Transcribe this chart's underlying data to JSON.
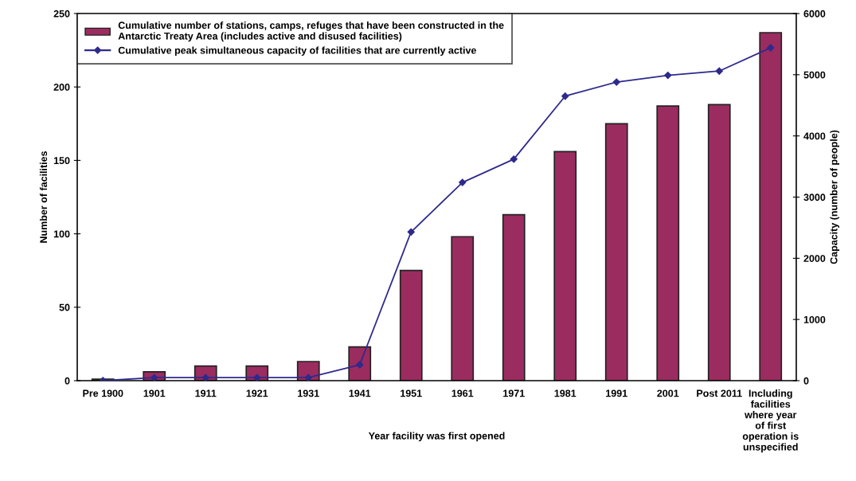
{
  "chart_data": {
    "type": "bar",
    "xlabel": "Year facility was first opened",
    "ylabel": "Number of facilities",
    "y2label": "Capacity (number of people)",
    "categories": [
      "Pre 1900",
      "1901",
      "1911",
      "1921",
      "1931",
      "1941",
      "1951",
      "1961",
      "1971",
      "1981",
      "1991",
      "2001",
      "Post 2011",
      "Including\nfacilities\nwhere year\nof first\noperation is\nunspecified"
    ],
    "series": [
      {
        "name": "Cumulative number of stations, camps, refuges that have been constructed in the\nAntarctic Treaty Area (includes active and disused facilities)",
        "color": "#9b2c60",
        "values": [
          1,
          6,
          10,
          10,
          13,
          23,
          75,
          98,
          113,
          156,
          175,
          187,
          188,
          237
        ]
      },
      {
        "type": "line",
        "axis": "y2",
        "name": "Cumulative peak simultaneous capacity of facilities that are currently active",
        "color": "#2e2a8c",
        "marker": "diamond",
        "values": [
          0,
          50,
          50,
          50,
          50,
          260,
          2430,
          3240,
          3620,
          4650,
          4880,
          4990,
          5060,
          5440
        ]
      }
    ],
    "ylim": [
      0,
      250
    ],
    "yticks": [
      0,
      50,
      100,
      150,
      200,
      250
    ],
    "y2lim": [
      0,
      6000
    ],
    "y2ticks": [
      0,
      1000,
      2000,
      3000,
      4000,
      5000,
      6000
    ],
    "grid": false,
    "legend": "top left"
  }
}
